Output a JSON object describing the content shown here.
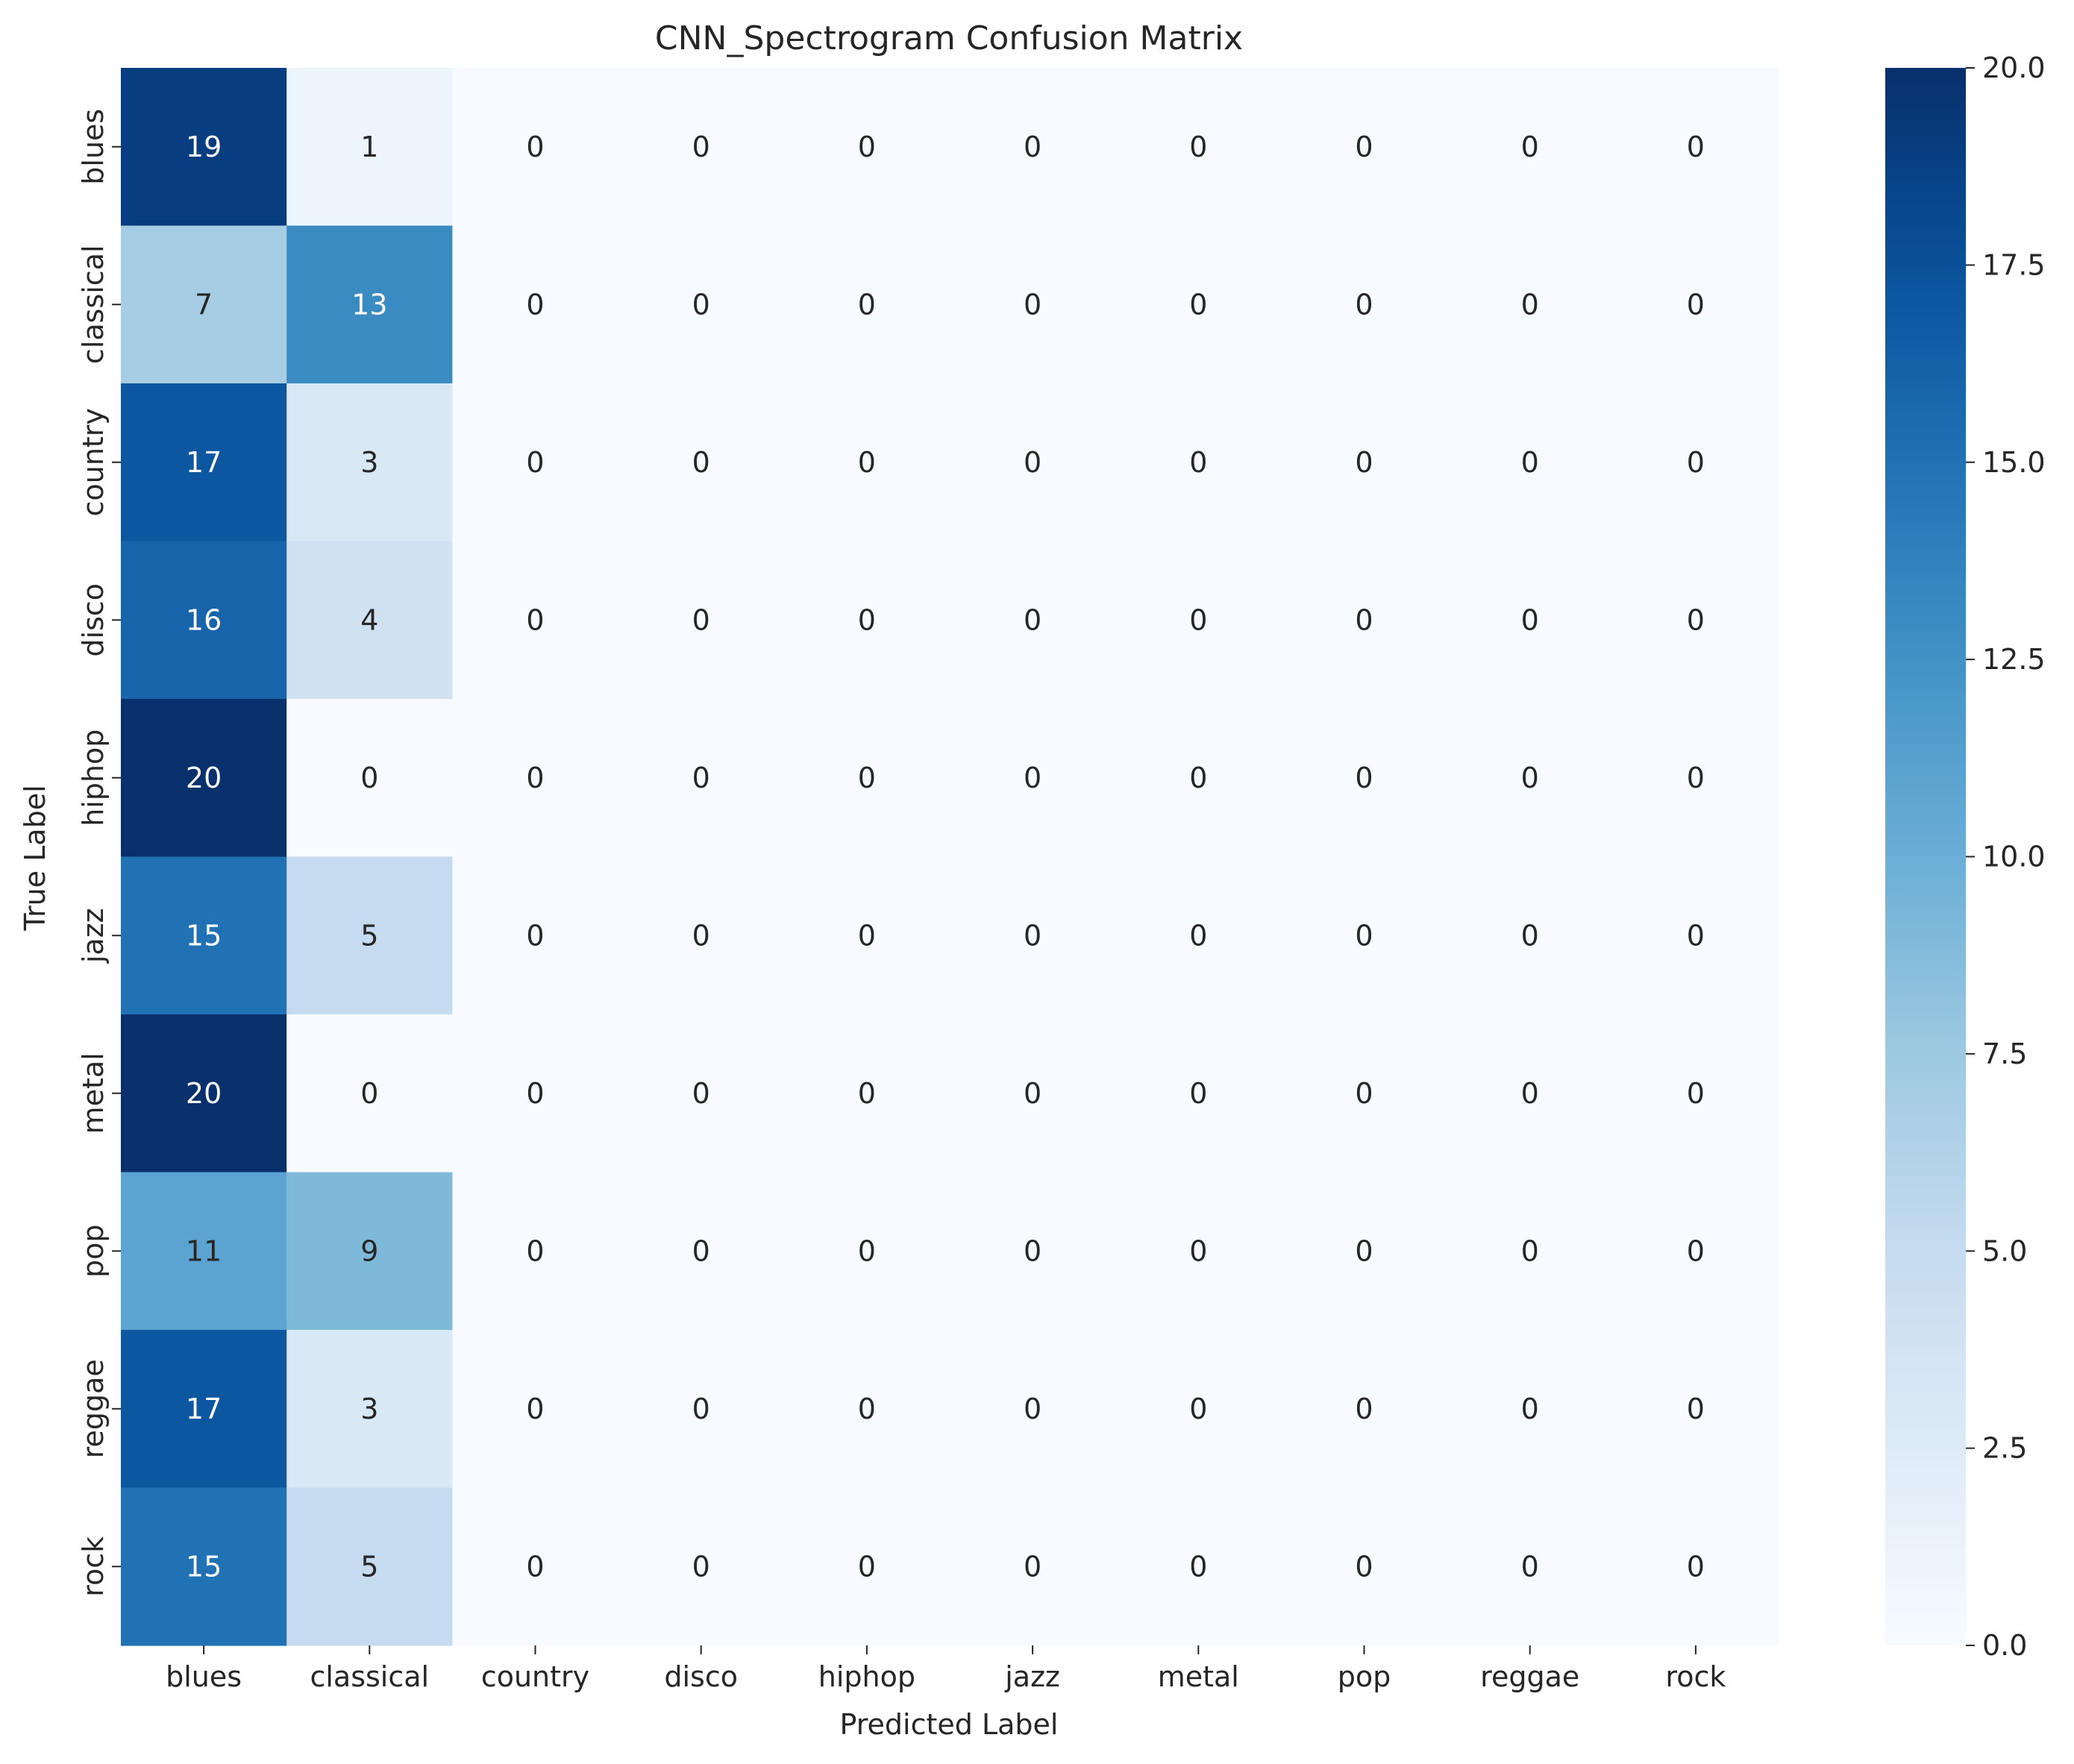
{
  "chart_data": {
    "type": "heatmap",
    "title": "CNN_Spectrogram Confusion Matrix",
    "xlabel": "Predicted Label",
    "ylabel": "True Label",
    "x_categories": [
      "blues",
      "classical",
      "country",
      "disco",
      "hiphop",
      "jazz",
      "metal",
      "pop",
      "reggae",
      "rock"
    ],
    "y_categories": [
      "blues",
      "classical",
      "country",
      "disco",
      "hiphop",
      "jazz",
      "metal",
      "pop",
      "reggae",
      "rock"
    ],
    "values": [
      [
        19,
        1,
        0,
        0,
        0,
        0,
        0,
        0,
        0,
        0
      ],
      [
        7,
        13,
        0,
        0,
        0,
        0,
        0,
        0,
        0,
        0
      ],
      [
        17,
        3,
        0,
        0,
        0,
        0,
        0,
        0,
        0,
        0
      ],
      [
        16,
        4,
        0,
        0,
        0,
        0,
        0,
        0,
        0,
        0
      ],
      [
        20,
        0,
        0,
        0,
        0,
        0,
        0,
        0,
        0,
        0
      ],
      [
        15,
        5,
        0,
        0,
        0,
        0,
        0,
        0,
        0,
        0
      ],
      [
        20,
        0,
        0,
        0,
        0,
        0,
        0,
        0,
        0,
        0
      ],
      [
        11,
        9,
        0,
        0,
        0,
        0,
        0,
        0,
        0,
        0
      ],
      [
        17,
        3,
        0,
        0,
        0,
        0,
        0,
        0,
        0,
        0
      ],
      [
        15,
        5,
        0,
        0,
        0,
        0,
        0,
        0,
        0,
        0
      ]
    ],
    "colormap": "Blues",
    "colorbar": {
      "range": [
        0,
        20
      ],
      "ticks": [
        0,
        2.5,
        5,
        7.5,
        10,
        12.5,
        15,
        17.5,
        20
      ],
      "tick_labels": [
        "0.0",
        "2.5",
        "5.0",
        "7.5",
        "10.0",
        "12.5",
        "15.0",
        "17.5",
        "20.0"
      ]
    },
    "grid": false,
    "legend": "none"
  }
}
